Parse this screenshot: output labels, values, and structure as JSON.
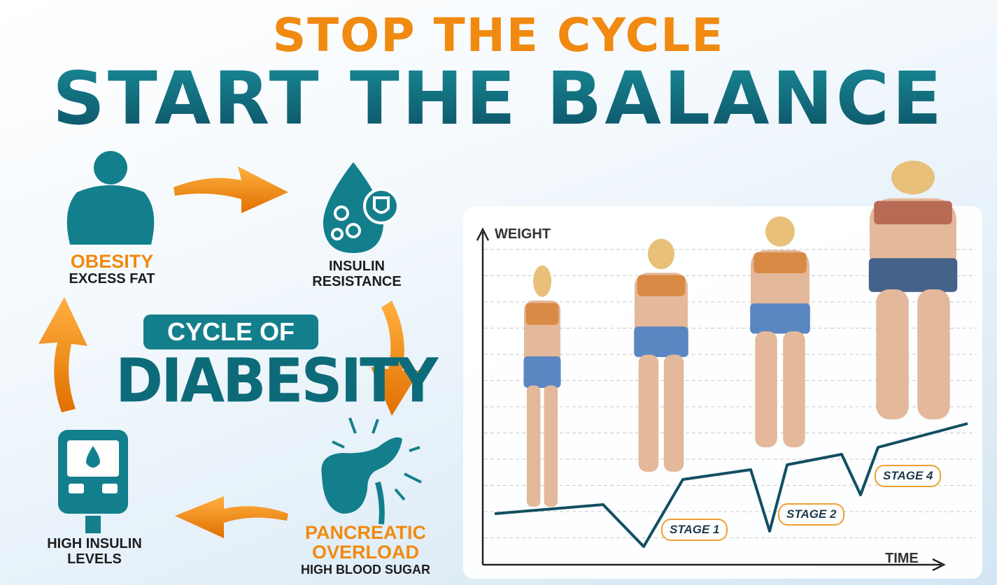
{
  "header": {
    "line1": "STOP THE CYCLE",
    "line2": "START THE BALANCE"
  },
  "cycle": {
    "title_top": "CYCLE OF",
    "title_main": "DIABESITY",
    "nodes": [
      {
        "icon": "obese-person-icon",
        "title": "OBESITY",
        "subtitle": "EXCESS FAT"
      },
      {
        "icon": "blood-drop-cells-icon",
        "title": "INSULIN",
        "subtitle": "RESISTANCE"
      },
      {
        "icon": "pancreas-icon",
        "title": "PANCREATIC",
        "title2": "OVERLOAD",
        "subtitle": "HIGH BLOOD SUGAR"
      },
      {
        "icon": "glucose-meter-icon",
        "title": "HIGH INSULIN",
        "subtitle": "LEVELS"
      }
    ],
    "arrow_color": "#f08a10",
    "icon_color": "#147f8c"
  },
  "chart": {
    "ylabel": "WEIGHT",
    "xlabel": "TIME",
    "stages": [
      "STAGE 1",
      "STAGE 2",
      "STAGE 4"
    ],
    "line_color": "#124f63"
  },
  "colors": {
    "orange": "#f08a10",
    "teal": "#0f6f7d"
  }
}
